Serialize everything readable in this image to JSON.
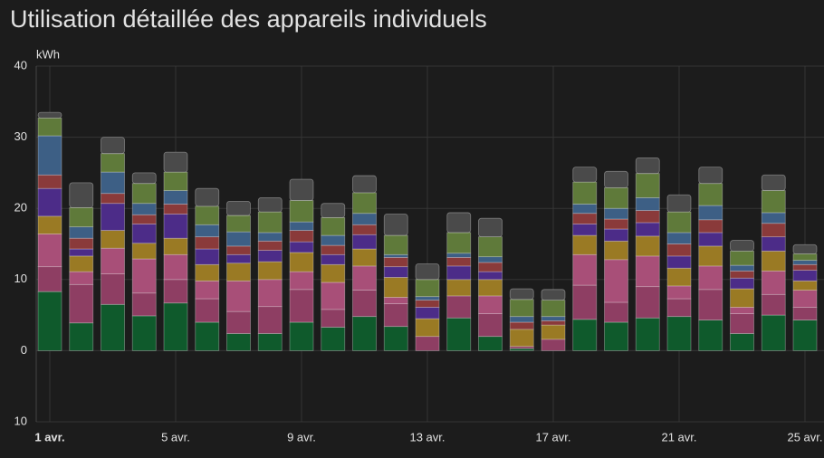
{
  "chart_data": {
    "type": "stacked_bar",
    "title": "Utilisation détaillée des appareils individuels",
    "y_label": "kWh",
    "categories": [
      "1 avr.",
      null,
      null,
      null,
      "5 avr.",
      null,
      null,
      null,
      "9 avr.",
      null,
      null,
      null,
      "13 avr.",
      null,
      null,
      null,
      "17 avr.",
      null,
      null,
      null,
      "21 avr.",
      null,
      null,
      null,
      "25 avr."
    ],
    "ylim": [
      -10,
      40
    ],
    "yticks": [
      {
        "value": -10,
        "label": "10"
      },
      0,
      10,
      20,
      30,
      40
    ],
    "grid": true,
    "series": [
      {
        "color": "#0f5a2c",
        "values": [
          8.3,
          3.9,
          6.5,
          4.9,
          6.7,
          4.0,
          2.4,
          2.4,
          4.0,
          3.3,
          4.8,
          3.4,
          0,
          4.6,
          2.0,
          0.3,
          0,
          4.4,
          4.0,
          4.6,
          4.8,
          4.3,
          2.4,
          5.0,
          4.3
        ]
      },
      {
        "color": "#8e3e63",
        "values": [
          3.5,
          5.4,
          4.3,
          3.2,
          3.3,
          3.3,
          3.1,
          3.8,
          4.6,
          2.5,
          3.7,
          3.2,
          2.0,
          3.1,
          3.2,
          0.3,
          1.6,
          4.8,
          2.8,
          4.4,
          2.5,
          4.3,
          2.8,
          2.9,
          1.8
        ]
      },
      {
        "color": "#a84f78",
        "values": [
          4.6,
          1.8,
          3.6,
          4.8,
          3.5,
          2.5,
          4.3,
          3.8,
          2.5,
          3.8,
          3.4,
          0.9,
          0,
          0,
          2.5,
          0,
          0,
          4.3,
          6.0,
          4.3,
          1.8,
          3.3,
          0.9,
          3.3,
          2.4
        ]
      },
      {
        "color": "#9a7a24",
        "values": [
          2.5,
          2.2,
          2.5,
          2.2,
          2.3,
          2.3,
          2.5,
          2.5,
          2.7,
          2.5,
          2.4,
          2.8,
          2.5,
          2.3,
          2.3,
          2.4,
          2.0,
          2.7,
          2.6,
          2.8,
          2.5,
          2.8,
          2.6,
          2.8,
          1.3
        ]
      },
      {
        "color": "#4c2c88",
        "values": [
          3.9,
          1.0,
          3.8,
          2.7,
          3.4,
          2.2,
          1.2,
          1.6,
          1.5,
          1.4,
          2.0,
          1.5,
          1.6,
          1.9,
          1.1,
          0,
          0,
          1.6,
          1.7,
          1.9,
          1.7,
          1.9,
          1.5,
          2.0,
          1.5
        ]
      },
      {
        "color": "#8a3a3a",
        "values": [
          1.9,
          1.5,
          1.4,
          1.3,
          1.4,
          1.7,
          1.2,
          1.3,
          1.6,
          1.3,
          1.4,
          1.3,
          1.0,
          1.2,
          1.3,
          1.0,
          0.6,
          1.5,
          1.4,
          1.7,
          1.7,
          1.8,
          1.0,
          1.9,
          0.8
        ]
      },
      {
        "color": "#3d5f85",
        "values": [
          5.5,
          1.6,
          3.0,
          1.6,
          1.9,
          1.7,
          2.0,
          1.2,
          1.2,
          1.4,
          1.6,
          0.4,
          0.5,
          0.6,
          0.8,
          0.8,
          0.6,
          1.3,
          1.5,
          1.8,
          1.6,
          2.0,
          0.8,
          1.5,
          0.6
        ]
      },
      {
        "color": "#5f7a3a",
        "values": [
          2.5,
          2.7,
          2.6,
          2.8,
          2.6,
          2.6,
          2.3,
          2.9,
          3.0,
          2.5,
          2.9,
          2.7,
          2.4,
          2.9,
          2.8,
          2.4,
          2.3,
          3.1,
          2.9,
          3.4,
          2.9,
          3.1,
          2.0,
          3.1,
          0.9
        ]
      },
      {
        "color": "#4a4a4a",
        "values": [
          0.8,
          3.5,
          2.3,
          1.5,
          2.8,
          2.5,
          2.0,
          2.0,
          3.0,
          2.0,
          2.4,
          3.0,
          2.2,
          2.8,
          2.6,
          1.5,
          1.5,
          2.1,
          2.3,
          2.2,
          2.4,
          2.3,
          1.5,
          2.2,
          1.3
        ]
      }
    ]
  }
}
